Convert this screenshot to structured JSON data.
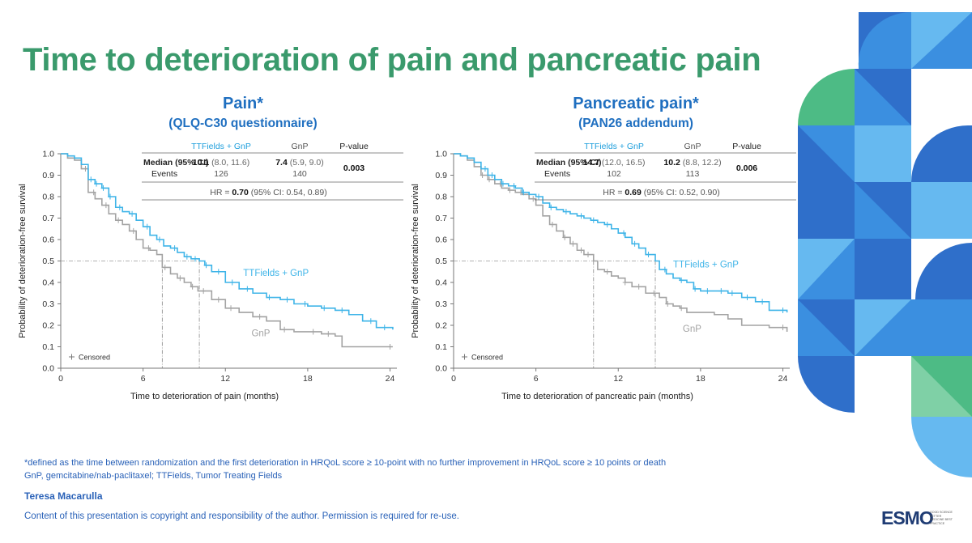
{
  "slide_title": "Time to deterioration of pain and pancreatic pain",
  "footnotes": [
    "*defined as the time between randomization and the first deterioration in HRQoL score ≥ 10-point with no further improvement in HRQoL score ≥ 10 points or death",
    "GnP, gemcitabine/nab-paclitaxel; TTFields, Tumor Treating Fields"
  ],
  "author": "Teresa Macarulla",
  "copyright": "Content of this presentation is copyright and responsibility of the author. Permission is required for re-use.",
  "logo": {
    "text": "ESMO",
    "tagline": "GOOD SCIENCE BETTER MEDICINE BEST PRACTICE"
  },
  "colors": {
    "title": "#3a9a6c",
    "blue_text": "#1f6fc0",
    "ttfields": "#3eb4e8",
    "gnp": "#a3a3a3",
    "deco_dark": "#2f6fca",
    "deco_mid": "#3b8fe0",
    "deco_light": "#66b9f0",
    "deco_green": "#4dbb85"
  },
  "chart_data": [
    {
      "type": "line",
      "subtype": "kaplan-meier",
      "title": "Pain*",
      "subtitle": "(QLQ-C30 questionnaire)",
      "xlabel": "Time to deterioration of pain (months)",
      "ylabel": "Probability of deterioration-free survival",
      "xlim": [
        0,
        24.5
      ],
      "ylim": [
        0,
        1
      ],
      "xticks": [
        "0",
        "6",
        "12",
        "18",
        "24"
      ],
      "yticks": [
        "0.0",
        "0.1",
        "0.2",
        "0.3",
        "0.4",
        "0.5",
        "0.6",
        "0.7",
        "0.8",
        "0.9",
        "1.0"
      ],
      "censored_label": "Censored",
      "median_line_y": 0.5,
      "table": {
        "headers": [
          "",
          "TTFields + GnP",
          "GnP",
          "P-value"
        ],
        "median_label": "Median (95% CI)",
        "events_label": "Events",
        "ttf_median": "10.1",
        "ttf_ci": "(8.0, 11.6)",
        "gnp_median": "7.4",
        "gnp_ci": "(5.9, 9.0)",
        "ttf_events": "126",
        "gnp_events": "140",
        "p_value": "0.003",
        "hr_prefix": "HR = ",
        "hr_value": "0.70",
        "hr_ci": " (95% CI: 0.54, 0.89)"
      },
      "series": [
        {
          "name": "TTFields + GnP",
          "label": "TTFields + GnP",
          "color": "#3eb4e8",
          "median": 10.1,
          "x": [
            0,
            0.5,
            1.0,
            1.5,
            2.0,
            2.5,
            3.0,
            3.5,
            4.0,
            4.5,
            5.0,
            5.5,
            6.0,
            6.5,
            7.0,
            7.5,
            8.0,
            8.5,
            9.0,
            9.5,
            10.1,
            10.5,
            11.0,
            12.0,
            13.0,
            14.0,
            15.0,
            16.0,
            17.0,
            18.0,
            19.0,
            20.0,
            21.0,
            22.0,
            23.0,
            24.2
          ],
          "y": [
            1.0,
            0.99,
            0.98,
            0.95,
            0.88,
            0.86,
            0.84,
            0.8,
            0.75,
            0.73,
            0.72,
            0.69,
            0.66,
            0.62,
            0.6,
            0.57,
            0.56,
            0.54,
            0.52,
            0.51,
            0.5,
            0.48,
            0.45,
            0.4,
            0.37,
            0.35,
            0.33,
            0.32,
            0.3,
            0.29,
            0.28,
            0.27,
            0.25,
            0.22,
            0.19,
            0.18
          ],
          "censor_x": [
            2.2,
            2.6,
            3.1,
            3.6,
            4.3,
            5.2,
            6.3,
            7.2,
            8.3,
            9.2,
            9.8,
            10.6,
            11.5,
            12.5,
            13.6,
            15.2,
            16.5,
            17.8,
            19.2,
            20.5,
            22.6,
            23.6
          ]
        },
        {
          "name": "GnP",
          "label": "GnP",
          "color": "#a3a3a3",
          "median": 7.4,
          "x": [
            0,
            0.5,
            1.0,
            1.5,
            2.0,
            2.5,
            3.0,
            3.5,
            4.0,
            4.5,
            5.0,
            5.5,
            6.0,
            6.5,
            7.0,
            7.4,
            8.0,
            8.5,
            9.0,
            9.5,
            10.0,
            11.0,
            12.0,
            13.0,
            14.0,
            15.0,
            16.0,
            17.0,
            18.0,
            19.0,
            20.0,
            20.5,
            21.0,
            22.0,
            23.0,
            24.2
          ],
          "y": [
            1.0,
            0.98,
            0.97,
            0.93,
            0.82,
            0.79,
            0.76,
            0.72,
            0.69,
            0.67,
            0.64,
            0.6,
            0.56,
            0.55,
            0.53,
            0.47,
            0.44,
            0.42,
            0.4,
            0.38,
            0.36,
            0.32,
            0.28,
            0.26,
            0.24,
            0.22,
            0.18,
            0.17,
            0.17,
            0.16,
            0.15,
            0.1,
            0.1,
            0.1,
            0.1,
            0.1
          ],
          "censor_x": [
            1.8,
            2.4,
            3.3,
            4.2,
            5.3,
            6.4,
            7.6,
            8.7,
            9.6,
            10.4,
            11.5,
            12.4,
            14.5,
            16.3,
            18.4,
            19.5,
            24.0
          ]
        }
      ],
      "series_labels": [
        {
          "text": "TTFields + GnP",
          "x": 13.3,
          "y": 0.43
        },
        {
          "text": "GnP",
          "x": 13.9,
          "y": 0.15
        }
      ]
    },
    {
      "type": "line",
      "subtype": "kaplan-meier",
      "title": "Pancreatic pain*",
      "subtitle": "(PAN26 addendum)",
      "xlabel": "Time to deterioration of pancreatic pain (months)",
      "ylabel": "Probability of deterioration-free survival",
      "xlim": [
        0,
        24.5
      ],
      "ylim": [
        0,
        1
      ],
      "xticks": [
        "0",
        "6",
        "12",
        "18",
        "24"
      ],
      "yticks": [
        "0.0",
        "0.1",
        "0.2",
        "0.3",
        "0.4",
        "0.5",
        "0.6",
        "0.7",
        "0.8",
        "0.9",
        "1.0"
      ],
      "censored_label": "Censored",
      "median_line_y": 0.5,
      "table": {
        "headers": [
          "",
          "TTFields + GnP",
          "GnP",
          "P-value"
        ],
        "median_label": "Median (95% CI)",
        "events_label": "Events",
        "ttf_median": "14.7",
        "ttf_ci": "(12.0, 16.5)",
        "gnp_median": "10.2",
        "gnp_ci": "(8.8, 12.2)",
        "ttf_events": "102",
        "gnp_events": "113",
        "p_value": "0.006",
        "hr_prefix": "HR = ",
        "hr_value": "0.69",
        "hr_ci": " (95% CI: 0.52, 0.90)"
      },
      "series": [
        {
          "name": "TTFields + GnP",
          "label": "TTFields + GnP",
          "color": "#3eb4e8",
          "median": 14.7,
          "x": [
            0,
            0.5,
            1.0,
            1.5,
            2.0,
            2.5,
            3.0,
            3.5,
            4.0,
            4.5,
            5.0,
            5.5,
            6.0,
            6.5,
            7.0,
            7.5,
            8.0,
            8.5,
            9.0,
            9.5,
            10.0,
            10.5,
            11.0,
            11.5,
            12.0,
            12.5,
            13.0,
            13.5,
            14.0,
            14.7,
            15.0,
            15.5,
            16.0,
            16.5,
            17.0,
            17.5,
            18.0,
            19.0,
            20.0,
            21.0,
            22.0,
            23.0,
            24.3
          ],
          "y": [
            1.0,
            0.99,
            0.98,
            0.96,
            0.93,
            0.9,
            0.88,
            0.86,
            0.85,
            0.84,
            0.82,
            0.81,
            0.8,
            0.77,
            0.75,
            0.74,
            0.73,
            0.72,
            0.71,
            0.7,
            0.69,
            0.68,
            0.67,
            0.65,
            0.63,
            0.61,
            0.58,
            0.56,
            0.53,
            0.5,
            0.46,
            0.44,
            0.42,
            0.41,
            0.4,
            0.37,
            0.36,
            0.36,
            0.35,
            0.33,
            0.31,
            0.27,
            0.26
          ],
          "censor_x": [
            2.3,
            2.8,
            3.6,
            4.4,
            5.1,
            6.2,
            7.1,
            8.2,
            9.3,
            10.2,
            11.2,
            12.4,
            13.2,
            14.2,
            15.4,
            16.6,
            17.6,
            18.5,
            19.5,
            20.3,
            21.4,
            22.5,
            24.0
          ]
        },
        {
          "name": "GnP",
          "label": "GnP",
          "color": "#a3a3a3",
          "median": 10.2,
          "x": [
            0,
            0.5,
            1.0,
            1.5,
            2.0,
            2.5,
            3.0,
            3.5,
            4.0,
            4.5,
            5.0,
            5.5,
            6.0,
            6.5,
            7.0,
            7.5,
            8.0,
            8.5,
            9.0,
            9.5,
            10.2,
            10.5,
            11.0,
            11.5,
            12.0,
            12.5,
            13.0,
            14.0,
            15.0,
            15.5,
            16.0,
            16.5,
            17.0,
            18.0,
            19.0,
            20.0,
            21.0,
            22.0,
            23.0,
            24.3
          ],
          "y": [
            1.0,
            0.99,
            0.97,
            0.94,
            0.9,
            0.88,
            0.86,
            0.84,
            0.83,
            0.82,
            0.81,
            0.79,
            0.76,
            0.71,
            0.67,
            0.64,
            0.61,
            0.58,
            0.55,
            0.53,
            0.5,
            0.46,
            0.45,
            0.43,
            0.42,
            0.4,
            0.38,
            0.35,
            0.33,
            0.3,
            0.29,
            0.28,
            0.26,
            0.26,
            0.25,
            0.23,
            0.2,
            0.2,
            0.19,
            0.17
          ],
          "censor_x": [
            2.1,
            2.6,
            3.4,
            4.1,
            4.9,
            5.8,
            7.2,
            8.1,
            8.7,
            9.3,
            9.8,
            11.2,
            12.5,
            13.5,
            14.6,
            15.6,
            16.6,
            24.0
          ]
        }
      ],
      "series_labels": [
        {
          "text": "TTFields + GnP",
          "x": 16.0,
          "y": 0.47
        },
        {
          "text": "GnP",
          "x": 16.7,
          "y": 0.17
        }
      ]
    }
  ]
}
